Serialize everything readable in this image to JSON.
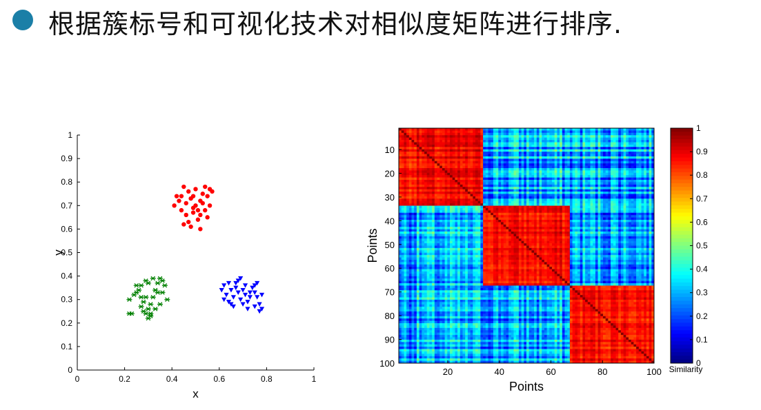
{
  "slide": {
    "title": "根据簇标号和可视化技术对相似度矩阵进行排序.",
    "bullet_color": "#1b7fa7"
  },
  "chart_data": [
    {
      "type": "scatter",
      "xlabel": "x",
      "ylabel": "y",
      "xlim": [
        0,
        1
      ],
      "ylim": [
        0,
        1
      ],
      "xticks": [
        "0",
        "0.2",
        "0.4",
        "0.6",
        "0.8",
        "1"
      ],
      "yticks": [
        "0",
        "0.1",
        "0.2",
        "0.3",
        "0.4",
        "0.5",
        "0.6",
        "0.7",
        "0.8",
        "0.9",
        "1"
      ],
      "grid": false,
      "series": [
        {
          "marker": "circle",
          "color": "#ff0000",
          "points": [
            [
              0.41,
              0.7
            ],
            [
              0.43,
              0.72
            ],
            [
              0.44,
              0.74
            ],
            [
              0.45,
              0.78
            ],
            [
              0.46,
              0.71
            ],
            [
              0.47,
              0.76
            ],
            [
              0.48,
              0.73
            ],
            [
              0.49,
              0.69
            ],
            [
              0.5,
              0.77
            ],
            [
              0.52,
              0.72
            ],
            [
              0.53,
              0.75
            ],
            [
              0.54,
              0.78
            ],
            [
              0.55,
              0.74
            ],
            [
              0.56,
              0.77
            ],
            [
              0.57,
              0.76
            ],
            [
              0.56,
              0.7
            ],
            [
              0.54,
              0.68
            ],
            [
              0.52,
              0.66
            ],
            [
              0.51,
              0.64
            ],
            [
              0.52,
              0.6
            ],
            [
              0.48,
              0.61
            ],
            [
              0.47,
              0.63
            ],
            [
              0.45,
              0.62
            ],
            [
              0.49,
              0.67
            ],
            [
              0.44,
              0.68
            ],
            [
              0.5,
              0.7
            ],
            [
              0.53,
              0.71
            ],
            [
              0.46,
              0.66
            ],
            [
              0.42,
              0.74
            ],
            [
              0.55,
              0.65
            ],
            [
              0.49,
              0.74
            ],
            [
              0.51,
              0.68
            ]
          ]
        },
        {
          "marker": "star",
          "color": "#008000",
          "points": [
            [
              0.22,
              0.24
            ],
            [
              0.23,
              0.24
            ],
            [
              0.22,
              0.3
            ],
            [
              0.24,
              0.32
            ],
            [
              0.25,
              0.36
            ],
            [
              0.26,
              0.34
            ],
            [
              0.27,
              0.31
            ],
            [
              0.28,
              0.29
            ],
            [
              0.27,
              0.27
            ],
            [
              0.28,
              0.25
            ],
            [
              0.29,
              0.24
            ],
            [
              0.3,
              0.22
            ],
            [
              0.31,
              0.23
            ],
            [
              0.3,
              0.26
            ],
            [
              0.31,
              0.28
            ],
            [
              0.32,
              0.31
            ],
            [
              0.33,
              0.34
            ],
            [
              0.34,
              0.37
            ],
            [
              0.35,
              0.39
            ],
            [
              0.36,
              0.38
            ],
            [
              0.37,
              0.36
            ],
            [
              0.36,
              0.33
            ],
            [
              0.38,
              0.3
            ],
            [
              0.35,
              0.28
            ],
            [
              0.33,
              0.26
            ],
            [
              0.3,
              0.37
            ],
            [
              0.29,
              0.38
            ],
            [
              0.32,
              0.39
            ],
            [
              0.25,
              0.33
            ],
            [
              0.27,
              0.36
            ],
            [
              0.31,
              0.24
            ],
            [
              0.34,
              0.33
            ],
            [
              0.29,
              0.31
            ]
          ]
        },
        {
          "marker": "triangle-down",
          "color": "#0000ff",
          "points": [
            [
              0.61,
              0.34
            ],
            [
              0.62,
              0.36
            ],
            [
              0.62,
              0.3
            ],
            [
              0.63,
              0.32
            ],
            [
              0.64,
              0.37
            ],
            [
              0.65,
              0.34
            ],
            [
              0.65,
              0.28
            ],
            [
              0.66,
              0.31
            ],
            [
              0.67,
              0.35
            ],
            [
              0.67,
              0.37
            ],
            [
              0.68,
              0.38
            ],
            [
              0.69,
              0.39
            ],
            [
              0.68,
              0.33
            ],
            [
              0.69,
              0.3
            ],
            [
              0.7,
              0.28
            ],
            [
              0.7,
              0.34
            ],
            [
              0.71,
              0.32
            ],
            [
              0.72,
              0.29
            ],
            [
              0.73,
              0.31
            ],
            [
              0.74,
              0.35
            ],
            [
              0.75,
              0.33
            ],
            [
              0.75,
              0.36
            ],
            [
              0.76,
              0.37
            ],
            [
              0.76,
              0.31
            ],
            [
              0.77,
              0.28
            ],
            [
              0.78,
              0.26
            ],
            [
              0.77,
              0.25
            ],
            [
              0.75,
              0.27
            ],
            [
              0.73,
              0.33
            ],
            [
              0.71,
              0.36
            ],
            [
              0.66,
              0.27
            ],
            [
              0.72,
              0.26
            ],
            [
              0.64,
              0.29
            ],
            [
              0.78,
              0.32
            ]
          ]
        }
      ]
    },
    {
      "type": "heatmap",
      "xlabel": "Points",
      "ylabel": "Points",
      "xlim": [
        1,
        100
      ],
      "ylim": [
        1,
        100
      ],
      "xticks": [
        "20",
        "40",
        "60",
        "80",
        "100"
      ],
      "yticks": [
        "10",
        "20",
        "30",
        "40",
        "50",
        "60",
        "70",
        "80",
        "90",
        "100"
      ],
      "n": 100,
      "colormap": "jet",
      "clusters": [
        {
          "start": 1,
          "end": 33,
          "within_similarity": 0.87
        },
        {
          "start": 34,
          "end": 67,
          "within_similarity": 0.87
        },
        {
          "start": 68,
          "end": 100,
          "within_similarity": 0.87
        }
      ],
      "between_cluster_similarity": 0.3,
      "diagonal_similarity": 1.0,
      "colorbar": {
        "label": "Similarity",
        "ticks": [
          "0",
          "0.1",
          "0.2",
          "0.3",
          "0.4",
          "0.5",
          "0.6",
          "0.7",
          "0.8",
          "0.9",
          "1"
        ],
        "range": [
          0,
          1
        ]
      }
    }
  ]
}
